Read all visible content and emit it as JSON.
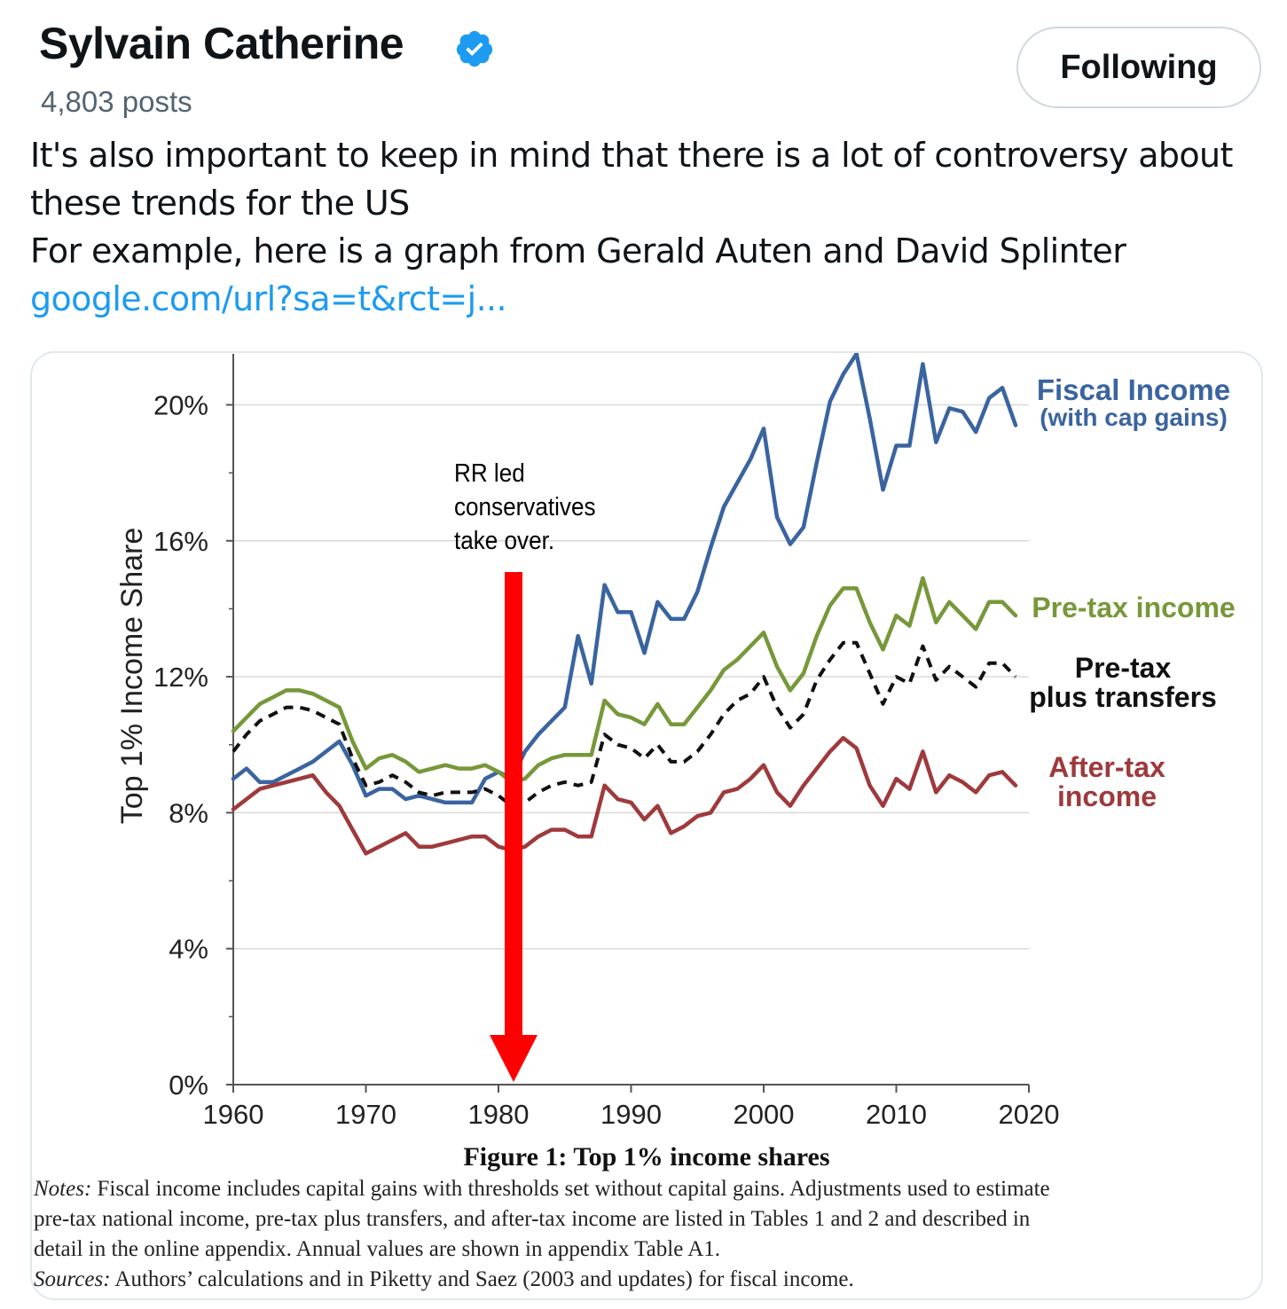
{
  "author": {
    "name": "Sylvain Catherine",
    "verified": true,
    "post_count": "4,803 posts",
    "badge_color": "#1d9bf0"
  },
  "follow_button": {
    "label": "Following"
  },
  "tweet": {
    "line1": "It's also important to keep in mind that there is a lot of controversy about",
    "line2": "these trends for the US",
    "line3": "For example, here is a graph from Gerald Auten and David Splinter",
    "link": "google.com/url?sa=t&rct=j..."
  },
  "chart_data": {
    "type": "line",
    "ylabel": "Top 1% Income Share",
    "xlim": [
      1960,
      2020
    ],
    "ylim": [
      0,
      21.5
    ],
    "x_ticks": [
      "1960",
      "1970",
      "1980",
      "1990",
      "2000",
      "2010",
      "2020"
    ],
    "y_ticks": [
      "0%",
      "4%",
      "8%",
      "12%",
      "16%",
      "20%"
    ],
    "y_tick_values": [
      0,
      4,
      8,
      12,
      16,
      20
    ],
    "grid": "horizontal",
    "legend": "inline labels at right end of lines",
    "annotation": {
      "lines": [
        "RR led",
        "conservatives",
        "take over."
      ],
      "arrow_year": 1981,
      "arrow_color": "#ff0000"
    },
    "x": [
      1960,
      1961,
      1962,
      1963,
      1964,
      1965,
      1966,
      1967,
      1968,
      1969,
      1970,
      1971,
      1972,
      1973,
      1974,
      1975,
      1976,
      1977,
      1978,
      1979,
      1980,
      1981,
      1982,
      1983,
      1984,
      1985,
      1986,
      1987,
      1988,
      1989,
      1990,
      1991,
      1992,
      1993,
      1994,
      1995,
      1996,
      1997,
      1998,
      1999,
      2000,
      2001,
      2002,
      2003,
      2004,
      2005,
      2006,
      2007,
      2008,
      2009,
      2010,
      2011,
      2012,
      2013,
      2014,
      2015,
      2016,
      2017,
      2018,
      2019
    ],
    "series": [
      {
        "name": "Fiscal Income (with cap gains)",
        "label_lines": [
          "Fiscal Income",
          "(with cap gains)"
        ],
        "color": "#3a64a0",
        "style": "solid",
        "values": [
          9.0,
          9.3,
          8.9,
          8.9,
          9.1,
          9.3,
          9.5,
          9.8,
          10.1,
          9.4,
          8.5,
          8.7,
          8.7,
          8.4,
          8.5,
          8.4,
          8.3,
          8.3,
          8.3,
          9.0,
          9.2,
          9.0,
          9.8,
          10.3,
          10.7,
          11.1,
          13.2,
          11.8,
          14.7,
          13.9,
          13.9,
          12.7,
          14.2,
          13.7,
          13.7,
          14.5,
          15.8,
          17.0,
          17.7,
          18.4,
          19.3,
          16.7,
          15.9,
          16.4,
          18.3,
          20.1,
          20.9,
          21.5,
          19.6,
          17.5,
          18.8,
          18.8,
          21.2,
          18.9,
          19.9,
          19.8,
          19.2,
          20.2,
          20.5,
          19.4
        ]
      },
      {
        "name": "Pre-tax income",
        "label_lines": [
          "Pre-tax income"
        ],
        "color": "#77983a",
        "style": "solid",
        "values": [
          10.4,
          10.8,
          11.2,
          11.4,
          11.6,
          11.6,
          11.5,
          11.3,
          11.1,
          10.1,
          9.3,
          9.6,
          9.7,
          9.5,
          9.2,
          9.3,
          9.4,
          9.3,
          9.3,
          9.4,
          9.2,
          8.9,
          9.0,
          9.4,
          9.6,
          9.7,
          9.7,
          9.7,
          11.3,
          10.9,
          10.8,
          10.6,
          11.2,
          10.6,
          10.6,
          11.1,
          11.6,
          12.2,
          12.5,
          12.9,
          13.3,
          12.3,
          11.6,
          12.1,
          13.2,
          14.1,
          14.6,
          14.6,
          13.6,
          12.8,
          13.8,
          13.5,
          14.9,
          13.6,
          14.2,
          13.8,
          13.4,
          14.2,
          14.2,
          13.8
        ]
      },
      {
        "name": "Pre-tax plus transfers",
        "label_lines": [
          "Pre-tax",
          "plus transfers"
        ],
        "color": "#111111",
        "style": "dashed",
        "values": [
          9.8,
          10.3,
          10.7,
          10.9,
          11.1,
          11.1,
          11.0,
          10.8,
          10.6,
          9.6,
          8.8,
          8.9,
          9.1,
          8.9,
          8.6,
          8.5,
          8.6,
          8.6,
          8.6,
          8.7,
          8.5,
          8.2,
          8.3,
          8.6,
          8.8,
          8.9,
          8.8,
          8.9,
          10.3,
          10.0,
          9.9,
          9.6,
          10.0,
          9.5,
          9.5,
          9.8,
          10.3,
          10.9,
          11.3,
          11.5,
          12.0,
          11.1,
          10.5,
          10.9,
          11.9,
          12.5,
          13.0,
          13.0,
          12.1,
          11.2,
          12.0,
          11.8,
          12.9,
          11.9,
          12.3,
          12.0,
          11.7,
          12.4,
          12.4,
          12.0
        ]
      },
      {
        "name": "After-tax income",
        "label_lines": [
          "After-tax",
          "income"
        ],
        "color": "#9e3a3c",
        "style": "solid",
        "values": [
          8.1,
          8.4,
          8.7,
          8.8,
          8.9,
          9.0,
          9.1,
          8.6,
          8.2,
          7.5,
          6.8,
          7.0,
          7.2,
          7.4,
          7.0,
          7.0,
          7.1,
          7.2,
          7.3,
          7.3,
          7.0,
          6.9,
          7.0,
          7.3,
          7.5,
          7.5,
          7.3,
          7.3,
          8.8,
          8.4,
          8.3,
          7.8,
          8.2,
          7.4,
          7.6,
          7.9,
          8.0,
          8.6,
          8.7,
          9.0,
          9.4,
          8.6,
          8.2,
          8.8,
          9.3,
          9.8,
          10.2,
          9.9,
          8.8,
          8.2,
          9.0,
          8.7,
          9.8,
          8.6,
          9.1,
          8.9,
          8.6,
          9.1,
          9.2,
          8.8
        ]
      }
    ],
    "caption": "Figure 1: Top 1% income shares",
    "notes_label": "Notes:",
    "notes_line1": " Fiscal income includes capital gains with thresholds set without capital gains. Adjustments used to estimate",
    "notes_line2": "pre-tax national income, pre-tax plus transfers, and after-tax income are listed in Tables 1 and 2 and described in",
    "notes_line3": "detail in the online appendix.  Annual values are shown in appendix Table A1.",
    "sources_label": "Sources:",
    "sources_text": " Authors’ calculations and in Piketty and Saez (2003 and updates) for fiscal income."
  }
}
